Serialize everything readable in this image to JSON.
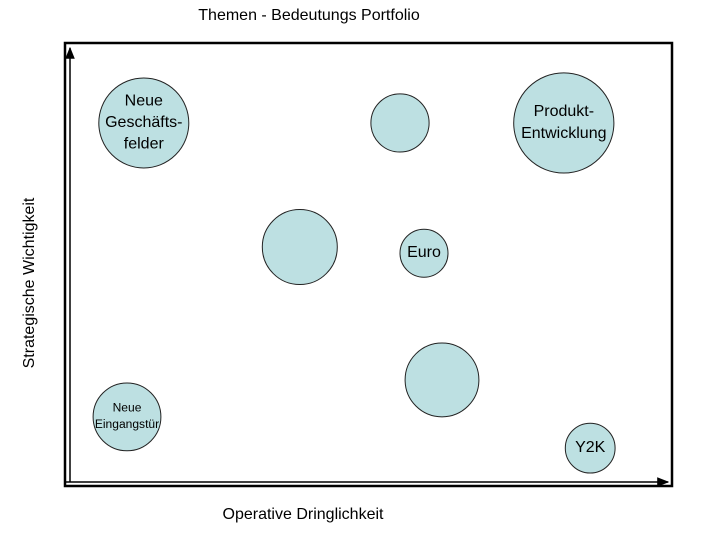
{
  "chart_data": {
    "type": "bubble",
    "title": "Themen - Bedeutungs Portfolio",
    "x_label": "Operative Dringlichkeit",
    "y_label": "Strategische Wichtigkeit",
    "xlim": [
      0,
      100
    ],
    "ylim": [
      0,
      100
    ],
    "color": "#bde0e2",
    "labels": [
      "Neue\nGeschäfts-\nfelder",
      null,
      "Produkt-\nEntwicklung",
      null,
      "Euro",
      null,
      "Neue\nEingangstür",
      "Y2K"
    ],
    "x": [
      12.3,
      55,
      82.3,
      38.3,
      59,
      62,
      9.5,
      86.7
    ],
    "values": [
      81.6,
      81.6,
      81.6,
      53.4,
      52,
      23.2,
      14.8,
      7.7
    ],
    "sizes": [
      15,
      9.7,
      16.7,
      12.5,
      8,
      12.3,
      11.3,
      8.3
    ]
  }
}
